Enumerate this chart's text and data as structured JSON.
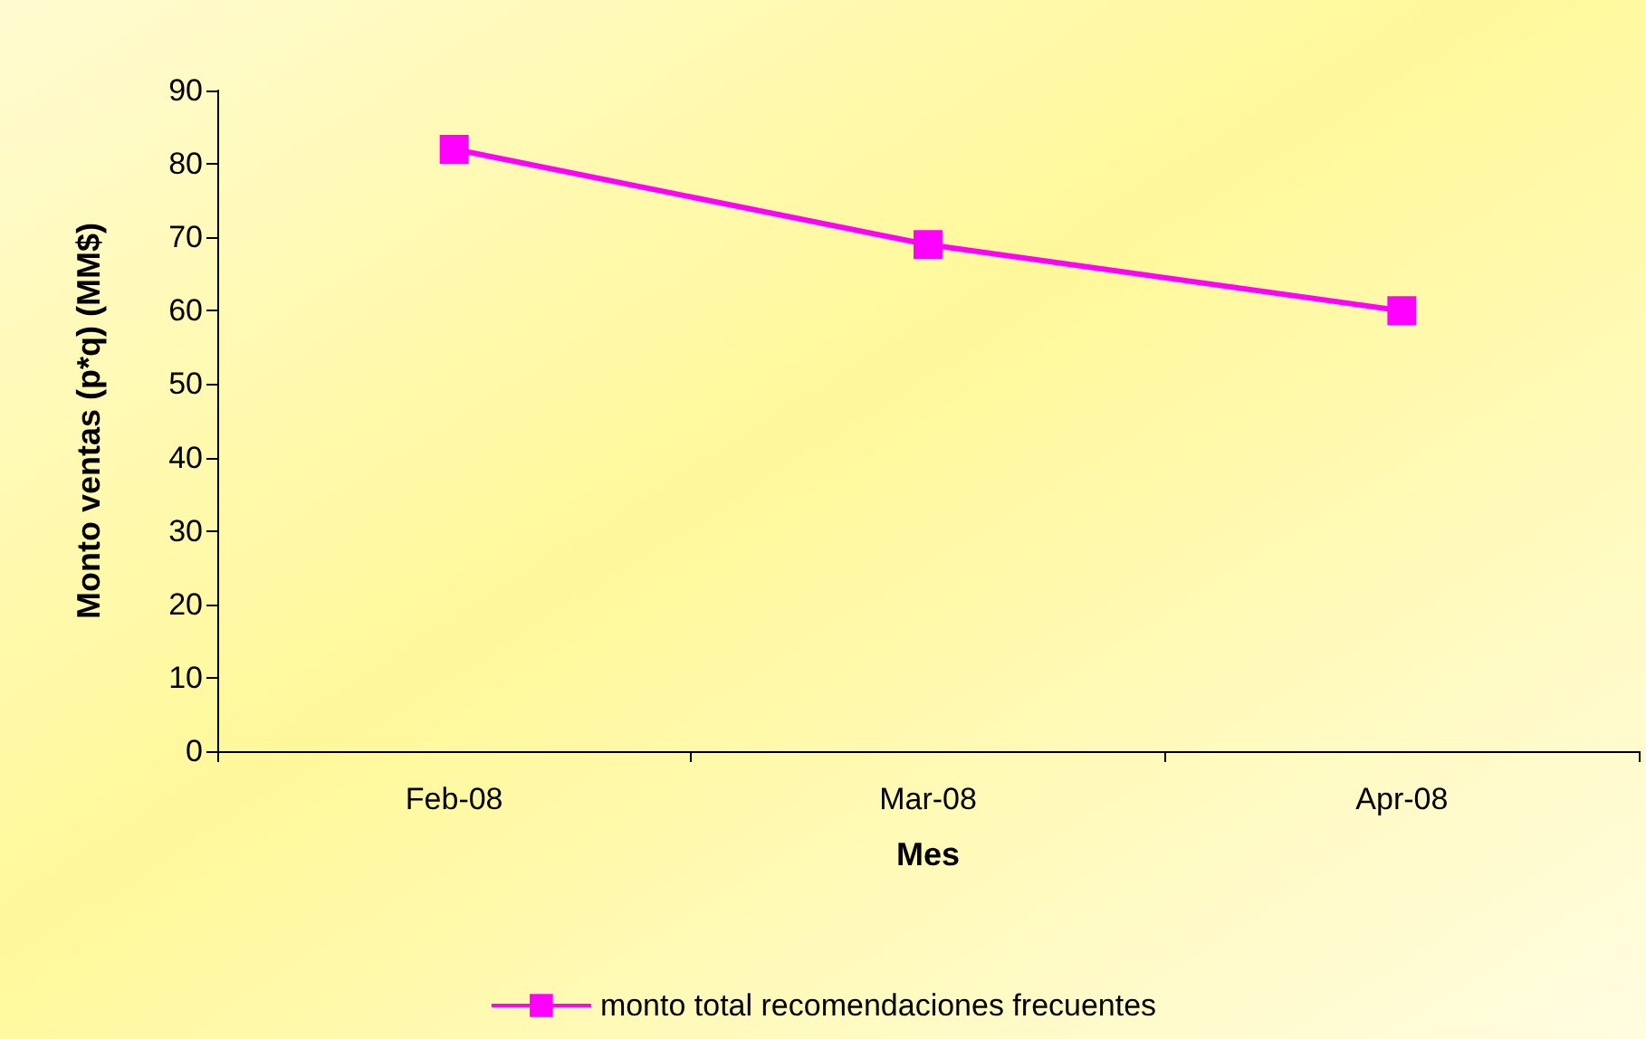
{
  "chart_data": {
    "type": "line",
    "xlabel": "Mes",
    "ylabel": "Monto ventas (p*q) (MM$)",
    "categories": [
      "Feb-08",
      "Mar-08",
      "Apr-08"
    ],
    "series": [
      {
        "name": "monto total recomendaciones frecuentes",
        "color": "#ff00ff",
        "values": [
          82,
          69,
          60
        ]
      }
    ],
    "ylim": [
      0,
      90
    ],
    "yticks": [
      0,
      10,
      20,
      30,
      40,
      50,
      60,
      70,
      80,
      90
    ],
    "grid": false,
    "legend": "bottom",
    "marker": "square",
    "line_style": "solid"
  }
}
